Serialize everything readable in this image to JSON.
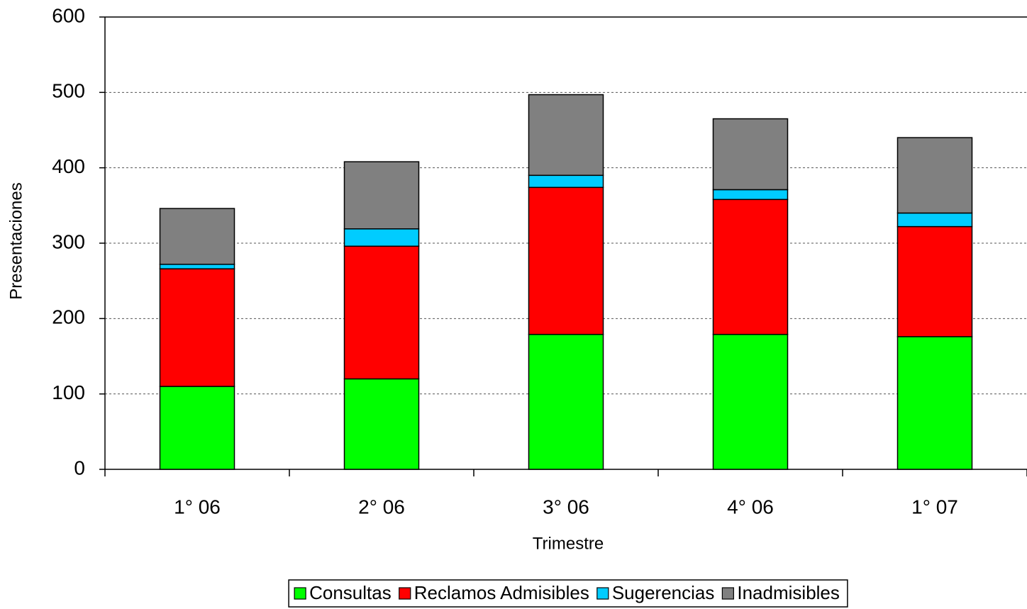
{
  "chart_data": {
    "type": "bar",
    "stacked": true,
    "x_label": "Trimestre",
    "y_label": "Presentaciones",
    "categories": [
      "1° 06",
      "2° 06",
      "3° 06",
      "4° 06",
      "1° 07"
    ],
    "series": [
      {
        "name": "Consultas",
        "color": "#00ff00",
        "values": [
          110,
          120,
          179,
          179,
          176
        ]
      },
      {
        "name": "Reclamos Admisibles",
        "color": "#ff0000",
        "values": [
          156,
          176,
          195,
          179,
          146
        ]
      },
      {
        "name": "Sugerencias",
        "color": "#00ccff",
        "values": [
          6,
          23,
          16,
          13,
          18
        ]
      },
      {
        "name": "Inadmisibles",
        "color": "#808080",
        "values": [
          74,
          89,
          107,
          94,
          100
        ]
      }
    ],
    "ylim": [
      0,
      600
    ],
    "yticks": [
      0,
      100,
      200,
      300,
      400,
      500,
      600
    ],
    "grid": true,
    "legend": "bottom"
  }
}
